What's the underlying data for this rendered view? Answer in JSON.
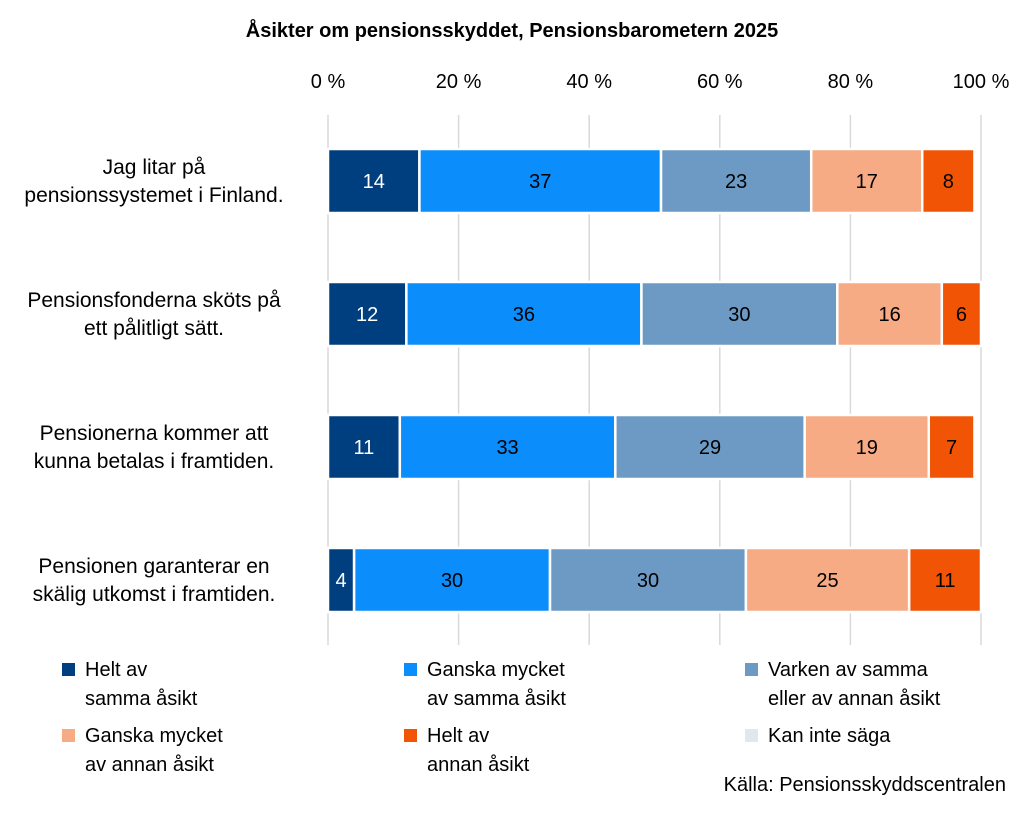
{
  "chart_data": {
    "type": "stacked-bar-horizontal",
    "title": "Åsikter om pensionsskyddet, Pensionsbarometern 2025",
    "x_ticks": [
      "0 %",
      "20 %",
      "40 %",
      "60 %",
      "80 %",
      "100 %"
    ],
    "xlim": [
      0,
      100
    ],
    "categories": [
      [
        "Jag litar på",
        "pensionssystemet i Finland."
      ],
      [
        "Pensionsfonderna sköts på",
        "ett pålitligt sätt."
      ],
      [
        "Pensionerna kommer att",
        "kunna betalas i framtiden."
      ],
      [
        "Pensionen garanterar en",
        "skälig utkomst i framtiden."
      ]
    ],
    "series": [
      {
        "name": "Helt av\nsamma åsikt",
        "color": "#003f7f",
        "label_color": "#ffffff",
        "values": [
          14,
          12,
          11,
          4
        ]
      },
      {
        "name": "Ganska mycket\nav samma åsikt",
        "color": "#0b8dfb",
        "label_color": "#000000",
        "values": [
          37,
          36,
          33,
          30
        ]
      },
      {
        "name": "Varken av samma\neller av annan åsikt",
        "color": "#6c9ac4",
        "label_color": "#000000",
        "values": [
          23,
          30,
          29,
          30
        ]
      },
      {
        "name": "Ganska mycket\nav annan åsikt",
        "color": "#f6ab84",
        "label_color": "#000000",
        "values": [
          17,
          16,
          19,
          25
        ]
      },
      {
        "name": "Helt av\nannan åsikt",
        "color": "#f25406",
        "label_color": "#000000",
        "values": [
          8,
          6,
          7,
          11
        ]
      },
      {
        "name": "Kan inte säga",
        "color": "#dde8f3",
        "label_color": "#000000",
        "values": [
          0,
          0,
          0,
          0
        ]
      }
    ]
  },
  "source": "Källa: Pensionsskyddscentralen"
}
